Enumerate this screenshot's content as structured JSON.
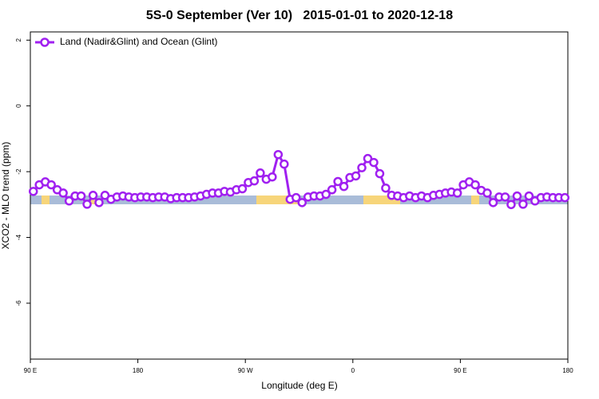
{
  "chart_data": {
    "type": "line",
    "title": "5S-0 September (Ver 10)   2015-01-01 to 2020-12-18",
    "x_label": "Longitude (deg E)",
    "y_label": "XCO2 - MLO trend (ppm)",
    "xlim": [
      90,
      540
    ],
    "ylim": [
      -7.7,
      2.25
    ],
    "xticks": [
      {
        "value": 90,
        "label": "90 E"
      },
      {
        "value": 180,
        "label": "180"
      },
      {
        "value": 270,
        "label": "90 W"
      },
      {
        "value": 360,
        "label": "0"
      },
      {
        "value": 450,
        "label": "90 E"
      },
      {
        "value": 540,
        "label": "180"
      }
    ],
    "yticks": [
      2,
      0,
      -2,
      -4,
      -6
    ],
    "legend": "top-left",
    "x": [
      92.5,
      97.5,
      102.5,
      107.5,
      112.5,
      117.5,
      122.5,
      127.5,
      132.5,
      137.5,
      142.5,
      147.5,
      152.5,
      157.5,
      162.5,
      167.5,
      172.5,
      177.5,
      182.5,
      187.5,
      192.5,
      197.5,
      202.5,
      207.5,
      212.5,
      217.5,
      222.5,
      227.5,
      232.5,
      237.5,
      242.5,
      247.5,
      252.5,
      257.5,
      262.5,
      267.5,
      272.5,
      277.5,
      282.5,
      287.5,
      292.5,
      297.5,
      302.5,
      307.5,
      312.5,
      317.5,
      322.5,
      327.5,
      332.5,
      337.5,
      342.5,
      347.5,
      352.5,
      357.5,
      362.5,
      367.5,
      372.5,
      377.5,
      382.5,
      387.5,
      392.5,
      397.5,
      402.5,
      407.5,
      412.5,
      417.5,
      422.5,
      427.5,
      432.5,
      437.5,
      442.5,
      447.5,
      452.5,
      457.5,
      462.5,
      467.5,
      472.5,
      477.5,
      482.5,
      487.5,
      492.5,
      497.5,
      502.5,
      507.5,
      512.5,
      517.5,
      522.5,
      527.5,
      532.5,
      537.5
    ],
    "series": [
      {
        "name": "Land (Nadir&Glint) and Ocean (Glint)",
        "color": "#a020f0",
        "values": [
          -2.6,
          -2.4,
          -2.31,
          -2.4,
          -2.55,
          -2.65,
          -2.89,
          -2.74,
          -2.74,
          -2.99,
          -2.72,
          -2.94,
          -2.72,
          -2.84,
          -2.77,
          -2.74,
          -2.77,
          -2.79,
          -2.77,
          -2.77,
          -2.79,
          -2.77,
          -2.77,
          -2.82,
          -2.79,
          -2.79,
          -2.79,
          -2.77,
          -2.74,
          -2.69,
          -2.65,
          -2.65,
          -2.6,
          -2.62,
          -2.55,
          -2.52,
          -2.33,
          -2.28,
          -2.04,
          -2.23,
          -2.16,
          -1.48,
          -1.77,
          -2.84,
          -2.79,
          -2.94,
          -2.77,
          -2.74,
          -2.74,
          -2.69,
          -2.55,
          -2.3,
          -2.45,
          -2.18,
          -2.13,
          -1.88,
          -1.6,
          -1.72,
          -2.06,
          -2.5,
          -2.72,
          -2.74,
          -2.79,
          -2.74,
          -2.79,
          -2.74,
          -2.79,
          -2.72,
          -2.69,
          -2.65,
          -2.62,
          -2.65,
          -2.4,
          -2.31,
          -2.4,
          -2.57,
          -2.65,
          -2.94,
          -2.77,
          -2.77,
          -3.0,
          -2.74,
          -2.99,
          -2.74,
          -2.89,
          -2.79,
          -2.77,
          -2.79,
          -2.79,
          -2.79
        ]
      }
    ]
  }
}
